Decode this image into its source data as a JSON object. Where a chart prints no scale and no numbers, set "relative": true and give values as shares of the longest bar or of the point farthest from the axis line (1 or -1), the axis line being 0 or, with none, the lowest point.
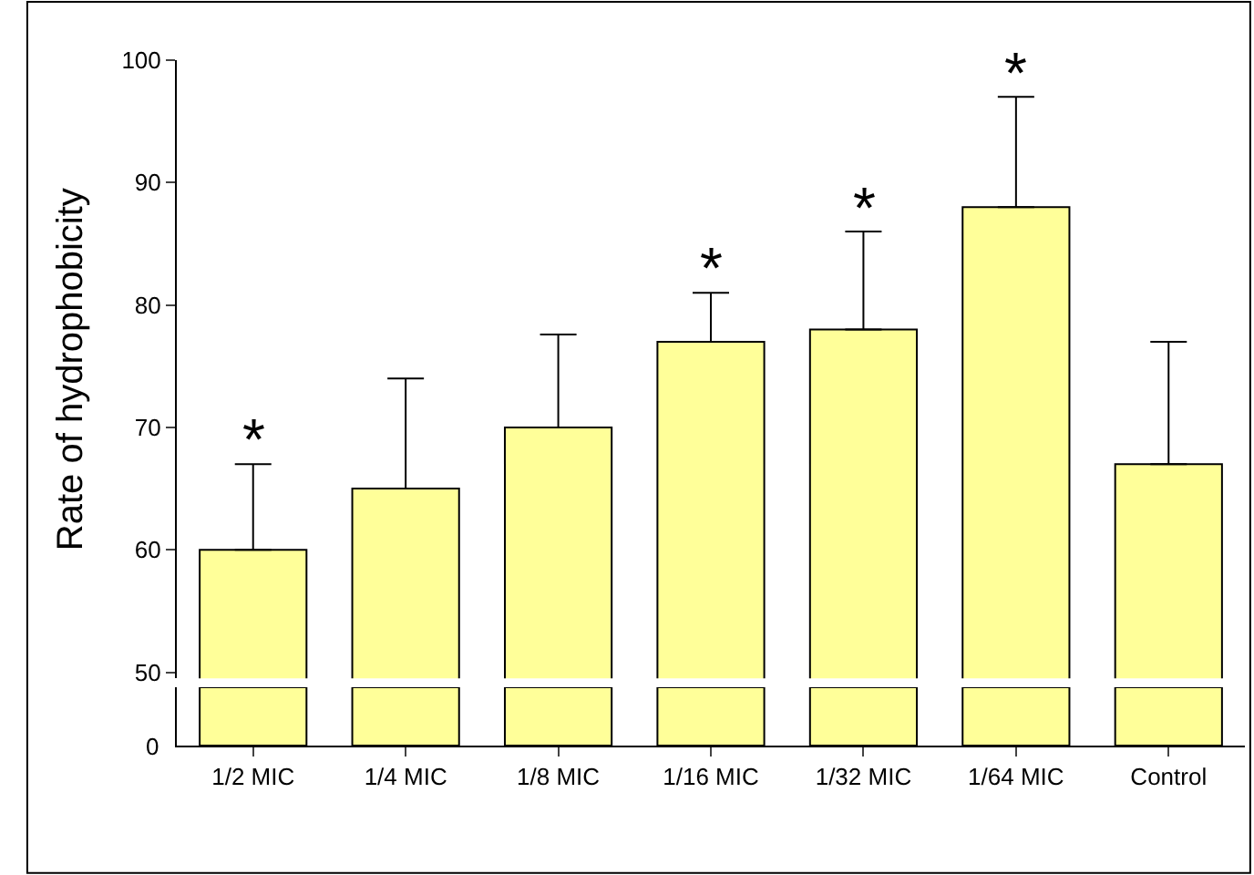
{
  "chart_data": [
    {
      "type": "bar",
      "ylabel": "Rate of hydrophobicity",
      "categories": [
        null,
        null,
        null,
        null,
        null,
        null,
        null
      ],
      "values": [
        60,
        65,
        70,
        77,
        78,
        88,
        67
      ],
      "color": "#ffff99",
      "errors": [
        [
          60,
          67
        ],
        [
          65,
          74
        ],
        [
          70,
          77.6
        ],
        [
          77,
          81
        ],
        [
          78,
          86
        ],
        [
          88,
          97
        ],
        [
          67,
          77
        ]
      ],
      "ylim": [
        49.5,
        100
      ],
      "yticks": [
        50,
        60,
        70,
        80,
        90,
        100
      ],
      "legend": false,
      "tick_labels": "y",
      "annotations": [
        "*",
        "*",
        "*",
        "*"
      ]
    },
    {
      "type": "bar",
      "categories": [
        "1/2 MIC",
        "1/4 MIC",
        "1/8 MIC",
        "1/16 MIC",
        "1/32 MIC",
        "1/64 MIC",
        "Control"
      ],
      "values": [
        1,
        1,
        1,
        1,
        1,
        1,
        1
      ],
      "color": "#ffff99",
      "relative": true,
      "legend": false,
      "annotations": [
        "0"
      ]
    }
  ]
}
